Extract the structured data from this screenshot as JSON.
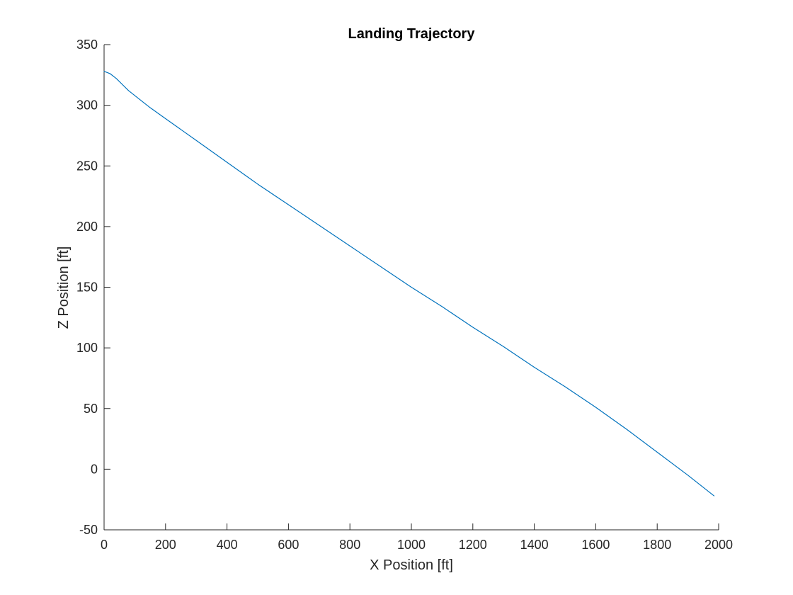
{
  "chart_data": {
    "type": "line",
    "title": "Landing Trajectory",
    "xlabel": "X Position [ft]",
    "ylabel": "Z Position [ft]",
    "xlim": [
      0,
      2000
    ],
    "ylim": [
      -50,
      350
    ],
    "xticks": [
      0,
      200,
      400,
      600,
      800,
      1000,
      1200,
      1400,
      1600,
      1800,
      2000
    ],
    "yticks": [
      -50,
      0,
      50,
      100,
      150,
      200,
      250,
      300,
      350
    ],
    "xtick_labels": [
      "0",
      "200",
      "400",
      "600",
      "800",
      "1000",
      "1200",
      "1400",
      "1600",
      "1800",
      "2000"
    ],
    "ytick_labels": [
      "-50",
      "0",
      "50",
      "100",
      "150",
      "200",
      "250",
      "300",
      "350"
    ],
    "grid": false,
    "legend": "none",
    "series": [
      {
        "color": "#0072BD",
        "x": [
          0,
          20,
          40,
          60,
          80,
          100,
          150,
          200,
          300,
          400,
          500,
          600,
          700,
          800,
          900,
          1000,
          1100,
          1200,
          1300,
          1400,
          1500,
          1600,
          1700,
          1800,
          1900,
          1950,
          1985
        ],
        "y": [
          328,
          326,
          322,
          317,
          312,
          308,
          298,
          289,
          271,
          253,
          235,
          218,
          201,
          184,
          167,
          150,
          134,
          117,
          101,
          84,
          68,
          51,
          33,
          14,
          -5,
          -15,
          -22
        ]
      }
    ]
  }
}
